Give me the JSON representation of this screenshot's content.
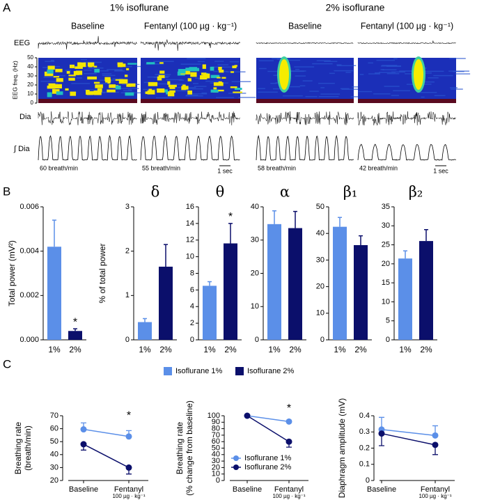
{
  "panel_a": {
    "label": "A",
    "groups": [
      {
        "title": "1% isoflurane",
        "conditions": [
          "Baseline",
          "Fentanyl (100 µg · kg⁻¹)"
        ],
        "rates": [
          "60 breath/min",
          "55 breath/min"
        ],
        "scale": "1 sec"
      },
      {
        "title": "2% isoflurane",
        "conditions": [
          "Baseline",
          "Fentanyl (100 µg · kg⁻¹)"
        ],
        "rates": [
          "58 breath/min",
          "42 breath/min"
        ],
        "scale": "1 sec"
      }
    ],
    "condition_colors": [
      "#000000",
      "#d42020"
    ],
    "rows": [
      "EEG",
      "EEG freq. (Hz)",
      "Dia",
      "∫ Dia"
    ],
    "ylim": [
      0,
      50
    ],
    "yticks": [
      0,
      10,
      20,
      30,
      40,
      50
    ]
  },
  "panel_b": {
    "label": "B",
    "legend": [
      {
        "name": "Isoflurane 1%",
        "color": "#5b8fe8"
      },
      {
        "name": "Isoflurane 2%",
        "color": "#0b0f6b"
      }
    ]
  },
  "panel_c": {
    "label": "C"
  },
  "chart_data": [
    {
      "type": "bar",
      "ylabel": [
        "Total power (mV²)"
      ],
      "categories": [
        "1%",
        "2%"
      ],
      "values": [
        0.0042,
        0.0004
      ],
      "errors": [
        0.0012,
        0.0001
      ],
      "ylim": [
        0,
        0.006
      ],
      "yticks": [
        {
          "value": 0,
          "label": "0.000"
        },
        0.002,
        0.004,
        0.006
      ],
      "annotation": "*",
      "annotation_category": "2%"
    },
    {
      "type": "bar",
      "title": "δ",
      "ylabel": [
        "% of total power"
      ],
      "categories": [
        "1%",
        "2%"
      ],
      "values": [
        0.4,
        1.65
      ],
      "errors": [
        0.08,
        0.5
      ],
      "ylim": [
        0,
        3
      ],
      "yticks": [
        0,
        1,
        2,
        3
      ]
    },
    {
      "type": "bar",
      "title": "θ",
      "categories": [
        "1%",
        "2%"
      ],
      "values": [
        6.5,
        11.6
      ],
      "errors": [
        0.5,
        2.4
      ],
      "ylim": [
        0,
        16
      ],
      "yticks": [
        0,
        2,
        4,
        6,
        8,
        10,
        12,
        14,
        16
      ],
      "annotation": "*",
      "annotation_category": "2%"
    },
    {
      "type": "bar",
      "title": "α",
      "categories": [
        "1%",
        "2%"
      ],
      "values": [
        34.8,
        33.6
      ],
      "errors": [
        4,
        5
      ],
      "ylim": [
        0,
        40
      ],
      "yticks": [
        0,
        10,
        20,
        30,
        40
      ]
    },
    {
      "type": "bar",
      "title": "β₁",
      "categories": [
        "1%",
        "2%"
      ],
      "values": [
        42.5,
        35.6
      ],
      "errors": [
        3.5,
        3.5
      ],
      "ylim": [
        0,
        50
      ],
      "yticks": [
        0,
        10,
        20,
        30,
        40,
        50
      ]
    },
    {
      "type": "bar",
      "title": "β₂",
      "categories": [
        "1%",
        "2%"
      ],
      "values": [
        21.4,
        26
      ],
      "errors": [
        2,
        3
      ],
      "ylim": [
        0,
        35
      ],
      "yticks": [
        0,
        5,
        10,
        15,
        20,
        25,
        30,
        35
      ]
    },
    {
      "type": "line",
      "ylabel": [
        "Breathing rate",
        "(breath/min)"
      ],
      "categories": [
        "Baseline",
        "Fentanyl"
      ],
      "category_sublabels": [
        null,
        "100 µg · kg⁻¹"
      ],
      "category_colors": [
        "#000000",
        "#d42020"
      ],
      "series": [
        {
          "color": "#5b8fe8",
          "values": [
            59.5,
            54
          ],
          "errors": [
            5,
            4.5
          ],
          "error_side": "up"
        },
        {
          "color": "#0b0f6b",
          "values": [
            48,
            30
          ],
          "errors": [
            4.5,
            5
          ],
          "error_side": "down"
        }
      ],
      "ylim": [
        20,
        70
      ],
      "yticks": [
        20,
        30,
        40,
        50,
        60,
        70
      ],
      "annotation": "*",
      "annotation_category": "Fentanyl"
    },
    {
      "type": "line",
      "ylabel": [
        "Breathing rate",
        "(% change from baseline)"
      ],
      "categories": [
        "Baseline",
        "Fentanyl"
      ],
      "category_sublabels": [
        null,
        "100 µg · kg⁻¹"
      ],
      "category_colors": [
        "#000000",
        "#d42020"
      ],
      "series": [
        {
          "name": "Isoflurane 1%",
          "color": "#5b8fe8",
          "values": [
            100,
            91
          ],
          "errors": [
            0,
            2
          ],
          "error_side": "up"
        },
        {
          "name": "Isoflurane 2%",
          "color": "#0b0f6b",
          "values": [
            100,
            60
          ],
          "errors": [
            0,
            8.5
          ],
          "error_side": "down"
        }
      ],
      "ylim": [
        0,
        100
      ],
      "yticks": [
        0,
        10,
        20,
        30,
        40,
        50,
        60,
        70,
        80,
        90,
        100
      ],
      "legend": "lower left",
      "annotation": "*",
      "annotation_category": "Fentanyl"
    },
    {
      "type": "line",
      "ylabel": [
        "Diaphragm amplitude (mV)"
      ],
      "categories": [
        "Baseline",
        "Fentanyl"
      ],
      "category_sublabels": [
        null,
        "100 µg · kg⁻¹"
      ],
      "category_colors": [
        "#000000",
        "#d42020"
      ],
      "series": [
        {
          "color": "#5b8fe8",
          "values": [
            0.315,
            0.278
          ],
          "errors": [
            0.075,
            0.06
          ],
          "error_side": "up"
        },
        {
          "color": "#0b0f6b",
          "values": [
            0.29,
            0.22
          ],
          "errors": [
            0.075,
            0.06
          ],
          "error_side": "down"
        }
      ],
      "ylim": [
        0,
        0.4
      ],
      "yticks": [
        0,
        0.1,
        0.2,
        0.3,
        0.4
      ]
    }
  ]
}
